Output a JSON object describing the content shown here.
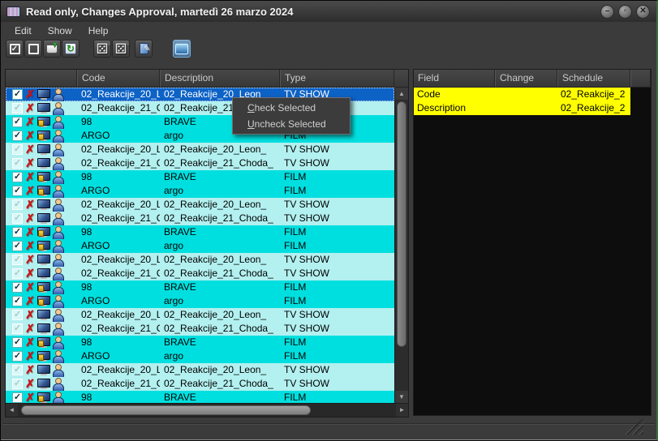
{
  "window": {
    "title": "Read only, Changes Approval, martedì 26 marzo 2024",
    "controls": [
      "minimize",
      "maximize",
      "close"
    ]
  },
  "menu": {
    "items": [
      "Edit",
      "Show",
      "Help"
    ]
  },
  "toolbar": {
    "buttons": [
      {
        "name": "checkbox-checked-icon",
        "icon": "checkbox-checked"
      },
      {
        "name": "checkbox-unchecked-icon",
        "icon": "checkbox-unchecked"
      },
      {
        "name": "archive-drop-icon",
        "icon": "archive"
      },
      {
        "name": "refresh-page-icon",
        "icon": "refresh"
      },
      {
        "name": "dice-icon-a",
        "icon": "dice",
        "gap": "gap"
      },
      {
        "name": "dice-icon-b",
        "icon": "dice"
      },
      {
        "name": "page-edit-icon",
        "icon": "page-edit",
        "gap": "gap-sm"
      },
      {
        "name": "monitor-icon",
        "icon": "monitor",
        "gap": "gap-lg",
        "active": true
      }
    ]
  },
  "table": {
    "headers": [
      "",
      "Code",
      "Description",
      "Type"
    ],
    "row_icons": [
      "row-checkbox",
      "delete-x-icon",
      "monitor-icon",
      "person-icon"
    ],
    "rows": [
      {
        "code": "02_Reakcije_20_L",
        "description": "02_Reakcije_20_Leon_",
        "type": "TV SHOW",
        "checked": true,
        "selected": true
      },
      {
        "code": "02_Reakcije_21_C",
        "description": "02_Reakcije_21_Choda_",
        "type": "TV SHOW",
        "checked": false
      },
      {
        "code": "98",
        "description": "BRAVE",
        "type": "FILM",
        "checked": true
      },
      {
        "code": "ARGO",
        "description": "argo",
        "type": "FILM",
        "checked": true
      },
      {
        "code": "02_Reakcije_20_L",
        "description": "02_Reakcije_20_Leon_",
        "type": "TV SHOW",
        "checked": false
      },
      {
        "code": "02_Reakcije_21_C",
        "description": "02_Reakcije_21_Choda_",
        "type": "TV SHOW",
        "checked": false
      },
      {
        "code": "98",
        "description": "BRAVE",
        "type": "FILM",
        "checked": true
      },
      {
        "code": "ARGO",
        "description": "argo",
        "type": "FILM",
        "checked": true
      },
      {
        "code": "02_Reakcije_20_L",
        "description": "02_Reakcije_20_Leon_",
        "type": "TV SHOW",
        "checked": false
      },
      {
        "code": "02_Reakcije_21_C",
        "description": "02_Reakcije_21_Choda_",
        "type": "TV SHOW",
        "checked": false
      },
      {
        "code": "98",
        "description": "BRAVE",
        "type": "FILM",
        "checked": true
      },
      {
        "code": "ARGO",
        "description": "argo",
        "type": "FILM",
        "checked": true
      },
      {
        "code": "02_Reakcije_20_L",
        "description": "02_Reakcije_20_Leon_",
        "type": "TV SHOW",
        "checked": false
      },
      {
        "code": "02_Reakcije_21_C",
        "description": "02_Reakcije_21_Choda_",
        "type": "TV SHOW",
        "checked": false
      },
      {
        "code": "98",
        "description": "BRAVE",
        "type": "FILM",
        "checked": true
      },
      {
        "code": "ARGO",
        "description": "argo",
        "type": "FILM",
        "checked": true
      },
      {
        "code": "02_Reakcije_20_L",
        "description": "02_Reakcije_20_Leon_",
        "type": "TV SHOW",
        "checked": false
      },
      {
        "code": "02_Reakcije_21_C",
        "description": "02_Reakcije_21_Choda_",
        "type": "TV SHOW",
        "checked": false
      },
      {
        "code": "98",
        "description": "BRAVE",
        "type": "FILM",
        "checked": true
      },
      {
        "code": "ARGO",
        "description": "argo",
        "type": "FILM",
        "checked": true
      },
      {
        "code": "02_Reakcije_20_L",
        "description": "02_Reakcije_20_Leon_",
        "type": "TV SHOW",
        "checked": false
      },
      {
        "code": "02_Reakcije_21_C",
        "description": "02_Reakcije_21_Choda_",
        "type": "TV SHOW",
        "checked": false
      },
      {
        "code": "98",
        "description": "BRAVE",
        "type": "FILM",
        "checked": true
      }
    ]
  },
  "context_menu": {
    "items": [
      "Check Selected",
      "Uncheck Selected"
    ]
  },
  "panel": {
    "headers": [
      "Field",
      "Change",
      "Schedule",
      ""
    ],
    "rows": [
      {
        "field": "Code",
        "change": "",
        "schedule": "02_Reakcije_2"
      },
      {
        "field": "Description",
        "change": "",
        "schedule": "02_Reakcije_2"
      }
    ]
  },
  "colors": {
    "selected_row": "#0d62c6",
    "tv_row": "#b3f0f0",
    "film_row": "#00dfdf",
    "highlight_row": "#ffff00",
    "x_red": "#c81414",
    "window_edge_green": "#3f6b3f"
  }
}
